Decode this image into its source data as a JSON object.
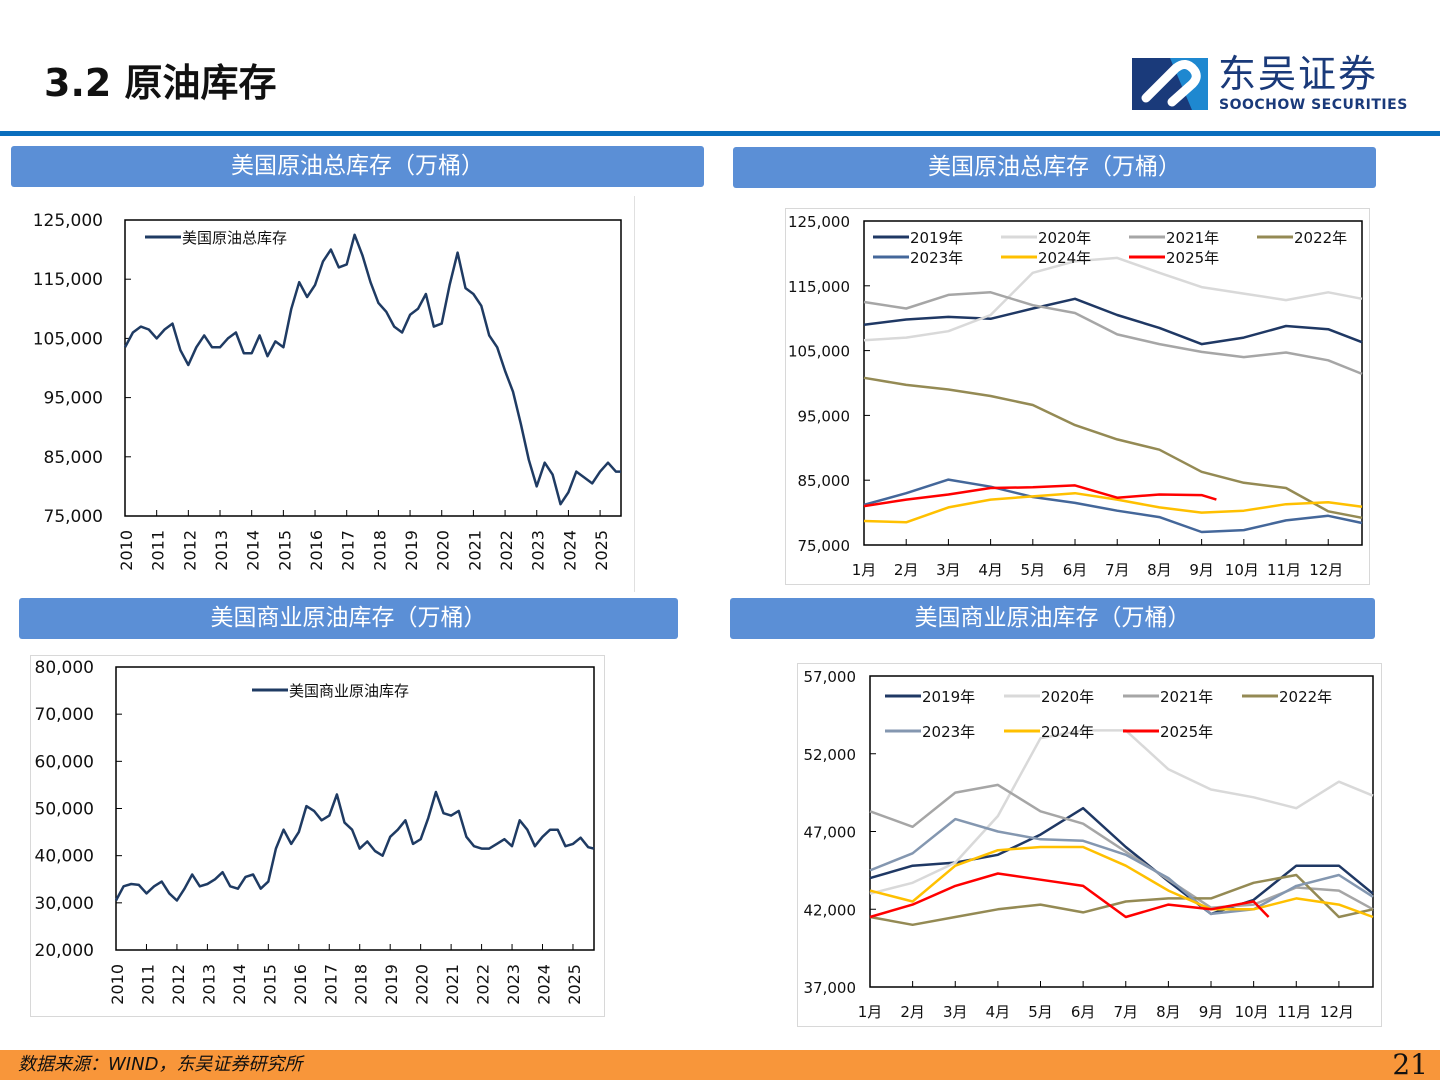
{
  "header": {
    "title": "3.2 原油库存",
    "logo_cn": "东吴证券",
    "logo_en": "SOOCHOW SECURITIES"
  },
  "panels": [
    {
      "title": "美国原油总库存（万桶）"
    },
    {
      "title": "美国原油总库存（万桶）"
    },
    {
      "title": "美国商业原油库存（万桶）"
    },
    {
      "title": "美国商业原油库存（万桶）"
    }
  ],
  "footer": {
    "source": "数据来源：WIND，东吴证券研究所",
    "page": "21"
  },
  "chart_data": [
    {
      "type": "line",
      "title": "",
      "xlim": [
        2010,
        2025.66
      ],
      "ylim": [
        75000,
        125000
      ],
      "x_ticks": [
        "2010",
        "2011",
        "2012",
        "2013",
        "2014",
        "2015",
        "2016",
        "2017",
        "2018",
        "2019",
        "2020",
        "2021",
        "2022",
        "2023",
        "2024",
        "2025"
      ],
      "y_ticks": [
        "75,000",
        "85,000",
        "95,000",
        "105,000",
        "115,000",
        "125,000"
      ],
      "legend": "top-left",
      "grid": false,
      "series": [
        {
          "name": "美国原油总库存",
          "color": "#1f3b63",
          "x": [
            2010,
            2010.25,
            2010.5,
            2010.75,
            2011,
            2011.25,
            2011.5,
            2011.75,
            2012,
            2012.25,
            2012.5,
            2012.75,
            2013,
            2013.25,
            2013.5,
            2013.75,
            2014,
            2014.25,
            2014.5,
            2014.75,
            2015,
            2015.25,
            2015.5,
            2015.75,
            2016,
            2016.25,
            2016.5,
            2016.75,
            2017,
            2017.25,
            2017.5,
            2017.75,
            2018,
            2018.25,
            2018.5,
            2018.75,
            2019,
            2019.25,
            2019.5,
            2019.75,
            2020,
            2020.25,
            2020.5,
            2020.75,
            2021,
            2021.25,
            2021.5,
            2021.75,
            2022,
            2022.25,
            2022.5,
            2022.75,
            2023,
            2023.25,
            2023.5,
            2023.75,
            2024,
            2024.25,
            2024.5,
            2024.75,
            2025,
            2025.25,
            2025.5,
            2025.66
          ],
          "y": [
            103500,
            106000,
            107000,
            106500,
            105000,
            106500,
            107500,
            103000,
            100500,
            103500,
            105500,
            103500,
            103500,
            105000,
            106000,
            102500,
            102500,
            105500,
            102000,
            104500,
            103500,
            110000,
            114500,
            112000,
            114000,
            118000,
            120000,
            117000,
            117500,
            122500,
            119000,
            114500,
            111000,
            109500,
            107000,
            106000,
            109000,
            110000,
            112500,
            107000,
            107500,
            114000,
            119500,
            113500,
            112500,
            110500,
            105500,
            103500,
            99500,
            96000,
            90500,
            84500,
            80000,
            84000,
            82000,
            77000,
            79000,
            82500,
            81500,
            80500,
            82500,
            84000,
            82500,
            82500
          ]
        }
      ]
    },
    {
      "type": "line",
      "title": "",
      "xlim": [
        1,
        12.8
      ],
      "ylim": [
        75000,
        125000
      ],
      "x_ticks": [
        "1月",
        "2月",
        "3月",
        "4月",
        "5月",
        "6月",
        "7月",
        "8月",
        "9月",
        "10月",
        "11月",
        "12月"
      ],
      "y_ticks": [
        "75,000",
        "85,000",
        "95,000",
        "105,000",
        "115,000",
        "125,000"
      ],
      "legend": "top",
      "grid": false,
      "series": [
        {
          "name": "2019年",
          "color": "#1f3864",
          "y": [
            109000,
            109800,
            110200,
            109900,
            111500,
            113000,
            110500,
            108500,
            106000,
            107000,
            108800,
            108300,
            106300
          ]
        },
        {
          "name": "2020年",
          "color": "#d9d9d9",
          "y": [
            106600,
            107000,
            108000,
            110500,
            117000,
            118800,
            119300,
            117000,
            114800,
            113800,
            112800,
            114000,
            113000
          ]
        },
        {
          "name": "2021年",
          "color": "#a6a6a6",
          "y": [
            112500,
            111500,
            113600,
            114000,
            112000,
            110800,
            107500,
            106000,
            104800,
            104000,
            104700,
            103500,
            101400
          ]
        },
        {
          "name": "2022年",
          "color": "#948a54",
          "y": [
            100800,
            99700,
            99000,
            98000,
            96600,
            93500,
            91300,
            89700,
            86300,
            84600,
            83800,
            80200,
            79200
          ]
        },
        {
          "name": "2023年",
          "color": "#44679a",
          "y": [
            81200,
            83000,
            85100,
            84000,
            82400,
            81500,
            80300,
            79300,
            77000,
            77300,
            78800,
            79500,
            78400
          ]
        },
        {
          "name": "2024年",
          "color": "#ffc000",
          "y": [
            78700,
            78500,
            80800,
            82000,
            82500,
            83000,
            82000,
            80800,
            80000,
            80300,
            81300,
            81600,
            80900
          ]
        },
        {
          "name": "2025年",
          "color": "#ff0000",
          "y": [
            81000,
            82000,
            82800,
            83800,
            83900,
            84200,
            82300,
            82800,
            82700,
            82000
          ]
        }
      ]
    },
    {
      "type": "line",
      "title": "",
      "xlim": [
        2010,
        2025.69
      ],
      "ylim": [
        20000,
        80000
      ],
      "x_ticks": [
        "2010",
        "2011",
        "2012",
        "2013",
        "2014",
        "2015",
        "2016",
        "2017",
        "2018",
        "2019",
        "2020",
        "2021",
        "2022",
        "2023",
        "2024",
        "2025"
      ],
      "y_ticks": [
        "20,000",
        "30,000",
        "40,000",
        "50,000",
        "60,000",
        "70,000",
        "80,000"
      ],
      "legend": "top-center",
      "grid": false,
      "series": [
        {
          "name": "美国商业原油库存",
          "color": "#1f3b63",
          "x": [
            2010,
            2010.25,
            2010.5,
            2010.75,
            2011,
            2011.25,
            2011.5,
            2011.75,
            2012,
            2012.25,
            2012.5,
            2012.75,
            2013,
            2013.25,
            2013.5,
            2013.75,
            2014,
            2014.25,
            2014.5,
            2014.75,
            2015,
            2015.25,
            2015.5,
            2015.75,
            2016,
            2016.25,
            2016.5,
            2016.75,
            2017,
            2017.25,
            2017.5,
            2017.75,
            2018,
            2018.25,
            2018.5,
            2018.75,
            2019,
            2019.25,
            2019.5,
            2019.75,
            2020,
            2020.25,
            2020.5,
            2020.75,
            2021,
            2021.25,
            2021.5,
            2021.75,
            2022,
            2022.25,
            2022.5,
            2022.75,
            2023,
            2023.25,
            2023.5,
            2023.75,
            2024,
            2024.25,
            2024.5,
            2024.75,
            2025,
            2025.25,
            2025.5,
            2025.69
          ],
          "y": [
            30500,
            33500,
            34000,
            33800,
            32000,
            33500,
            34500,
            32000,
            30500,
            33000,
            36000,
            33500,
            34000,
            35000,
            36500,
            33500,
            33000,
            35500,
            36000,
            33000,
            34500,
            41500,
            45500,
            42500,
            45000,
            50500,
            49500,
            47500,
            48500,
            53000,
            47000,
            45500,
            41500,
            43000,
            41000,
            40000,
            44000,
            45500,
            47500,
            42500,
            43500,
            48000,
            53500,
            49000,
            48500,
            49500,
            44000,
            42000,
            41500,
            41500,
            42500,
            43500,
            42000,
            47500,
            45500,
            42000,
            44000,
            45500,
            45500,
            42000,
            42500,
            43800,
            41800,
            41500
          ]
        }
      ]
    },
    {
      "type": "line",
      "title": "",
      "xlim": [
        1,
        12.8
      ],
      "ylim": [
        37000,
        57000
      ],
      "x_ticks": [
        "1月",
        "2月",
        "3月",
        "4月",
        "5月",
        "6月",
        "7月",
        "8月",
        "9月",
        "10月",
        "11月",
        "12月"
      ],
      "y_ticks": [
        "37,000",
        "42,000",
        "47,000",
        "52,000",
        "57,000"
      ],
      "legend": "top",
      "grid": false,
      "series": [
        {
          "name": "2019年",
          "color": "#1f3864",
          "y": [
            44000,
            44800,
            45000,
            45500,
            46800,
            48500,
            46000,
            43800,
            41700,
            42600,
            44800,
            44800,
            43000
          ]
        },
        {
          "name": "2020年",
          "color": "#d9d9d9",
          "y": [
            43000,
            43700,
            45000,
            48000,
            53000,
            53500,
            53500,
            51000,
            49700,
            49200,
            48500,
            50200,
            49300
          ]
        },
        {
          "name": "2021年",
          "color": "#a6a6a6",
          "y": [
            48300,
            47300,
            49500,
            50000,
            48300,
            47500,
            45700,
            43900,
            42100,
            42300,
            43400,
            43200,
            42000
          ]
        },
        {
          "name": "2022年",
          "color": "#948a54",
          "y": [
            41500,
            41000,
            41500,
            42000,
            42300,
            41800,
            42500,
            42700,
            42700,
            43700,
            44200,
            41500,
            42000
          ]
        },
        {
          "name": "2023年",
          "color": "#8497b0",
          "y": [
            44500,
            45600,
            47800,
            47000,
            46500,
            46400,
            45500,
            44000,
            41700,
            42000,
            43500,
            44200,
            42800
          ]
        },
        {
          "name": "2024年",
          "color": "#ffc000",
          "y": [
            43200,
            42500,
            44800,
            45800,
            46000,
            46000,
            44800,
            43200,
            42000,
            42000,
            42700,
            42300,
            41500
          ]
        },
        {
          "name": "2025年",
          "color": "#ff0000",
          "y": [
            41500,
            42300,
            43500,
            44300,
            43900,
            43500,
            41500,
            42300,
            42000,
            42500,
            41500
          ]
        }
      ]
    }
  ]
}
